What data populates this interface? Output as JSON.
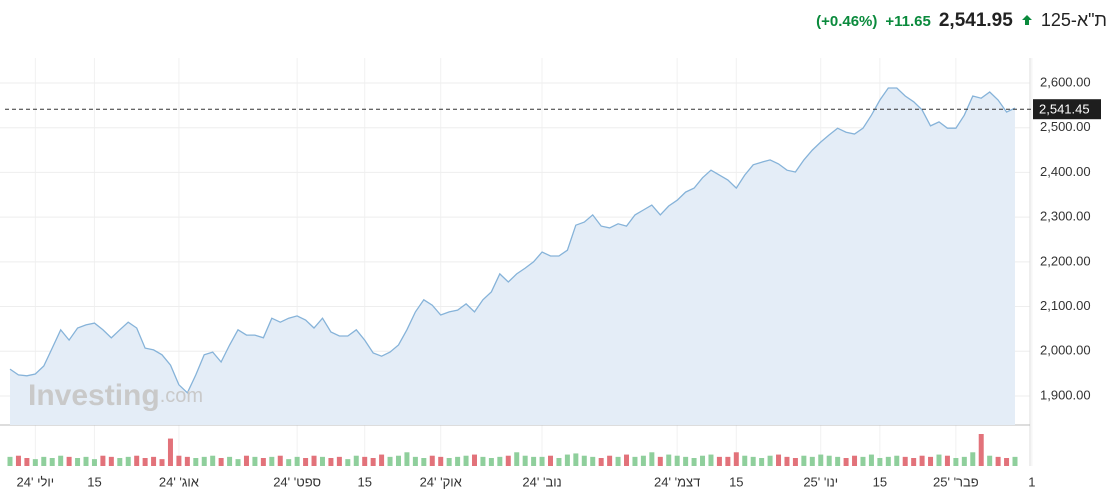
{
  "header": {
    "name": "ת\"א-125",
    "price": "2,541.95",
    "change": "+11.65",
    "change_pct": "(+0.46%)"
  },
  "watermark": {
    "brand": "Investing",
    "suffix": ".com"
  },
  "chart_data": {
    "type": "area",
    "categories": [
      null,
      null,
      null,
      "יולי '24",
      null,
      null,
      null,
      null,
      null,
      null,
      "15",
      null,
      null,
      null,
      null,
      null,
      null,
      null,
      null,
      null,
      "אוג' '24",
      null,
      null,
      null,
      null,
      null,
      null,
      null,
      null,
      null,
      null,
      null,
      null,
      null,
      "ספט' '24",
      null,
      null,
      null,
      null,
      null,
      null,
      null,
      "15",
      null,
      null,
      null,
      null,
      null,
      null,
      null,
      null,
      "אוק' '24",
      null,
      null,
      null,
      null,
      null,
      null,
      null,
      null,
      null,
      null,
      null,
      "נוב' '24",
      null,
      null,
      null,
      null,
      null,
      null,
      null,
      null,
      null,
      null,
      null,
      null,
      null,
      null,
      null,
      "דצמ' '24",
      null,
      null,
      null,
      null,
      null,
      null,
      "15",
      null,
      null,
      null,
      null,
      null,
      null,
      null,
      null,
      null,
      "ינו' '25",
      null,
      null,
      null,
      null,
      null,
      null,
      "15",
      null,
      null,
      null,
      null,
      null,
      null,
      null,
      null,
      "פבר' '25",
      null,
      null,
      null,
      null,
      null,
      null,
      null,
      null,
      "1"
    ],
    "series": [
      {
        "color": "#86b3d9",
        "values": [
          1960,
          1947,
          1945,
          1949,
          1967,
          2007,
          2048,
          2025,
          2052,
          2059,
          2063,
          2048,
          2030,
          2048,
          2065,
          2052,
          2007,
          2003,
          1992,
          1969,
          1925,
          1907,
          1947,
          1992,
          1998,
          1976,
          2014,
          2048,
          2036,
          2036,
          2030,
          2074,
          2065,
          2074,
          2079,
          2070,
          2052,
          2074,
          2043,
          2034,
          2034,
          2048,
          2025,
          1996,
          1989,
          1998,
          2014,
          2048,
          2088,
          2115,
          2103,
          2081,
          2088,
          2092,
          2106,
          2088,
          2115,
          2133,
          2173,
          2155,
          2173,
          2186,
          2200,
          2222,
          2213,
          2213,
          2226,
          2282,
          2289,
          2305,
          2280,
          2276,
          2285,
          2280,
          2305,
          2316,
          2327,
          2305,
          2325,
          2338,
          2356,
          2365,
          2388,
          2405,
          2394,
          2383,
          2365,
          2394,
          2417,
          2423,
          2428,
          2419,
          2405,
          2401,
          2428,
          2450,
          2468,
          2484,
          2499,
          2490,
          2486,
          2499,
          2528,
          2562,
          2589,
          2589,
          2571,
          2558,
          2540,
          2504,
          2513,
          2499,
          2499,
          2528,
          2571,
          2566,
          2580,
          2562,
          2535,
          2544,
          null,
          null
        ]
      },
      {
        "axis": "volume",
        "values": [
          8,
          9,
          7,
          6,
          8,
          7,
          9,
          8,
          7,
          8,
          6,
          9,
          8,
          7,
          8,
          9,
          7,
          8,
          6,
          24,
          9,
          8,
          7,
          8,
          9,
          7,
          8,
          6,
          9,
          8,
          7,
          8,
          9,
          6,
          8,
          7,
          9,
          8,
          7,
          8,
          6,
          9,
          8,
          7,
          10,
          8,
          9,
          12,
          8,
          7,
          9,
          8,
          7,
          8,
          9,
          10,
          8,
          7,
          8,
          9,
          12,
          9,
          8,
          8,
          9,
          7,
          10,
          11,
          9,
          8,
          7,
          9,
          8,
          10,
          8,
          9,
          12,
          8,
          10,
          9,
          8,
          7,
          9,
          10,
          8,
          8,
          12,
          9,
          8,
          7,
          9,
          10,
          8,
          7,
          9,
          8,
          10,
          9,
          8,
          7,
          9,
          8,
          10,
          7,
          8,
          9,
          8,
          7,
          9,
          8,
          10,
          9,
          7,
          8,
          12,
          28,
          9,
          8,
          7,
          8,
          null,
          null
        ]
      }
    ],
    "ylim": [
      1835,
      2656
    ],
    "yticks": [
      {
        "value": 1900,
        "label": "1,900.00"
      },
      {
        "value": 2000,
        "label": "2,000.00"
      },
      {
        "value": 2100,
        "label": "2,100.00"
      },
      {
        "value": 2200,
        "label": "2,200.00"
      },
      {
        "value": 2300,
        "label": "2,300.00"
      },
      {
        "value": 2400,
        "label": "2,400.00"
      },
      {
        "value": 2500,
        "label": "2,500.00"
      },
      {
        "value": 2600,
        "label": "2,600.00"
      }
    ],
    "reference_line": {
      "value": 2541.45,
      "label": "2,541.45"
    },
    "up_color": "#8fcf9c",
    "down_color": "#e2727a",
    "grid": true
  }
}
